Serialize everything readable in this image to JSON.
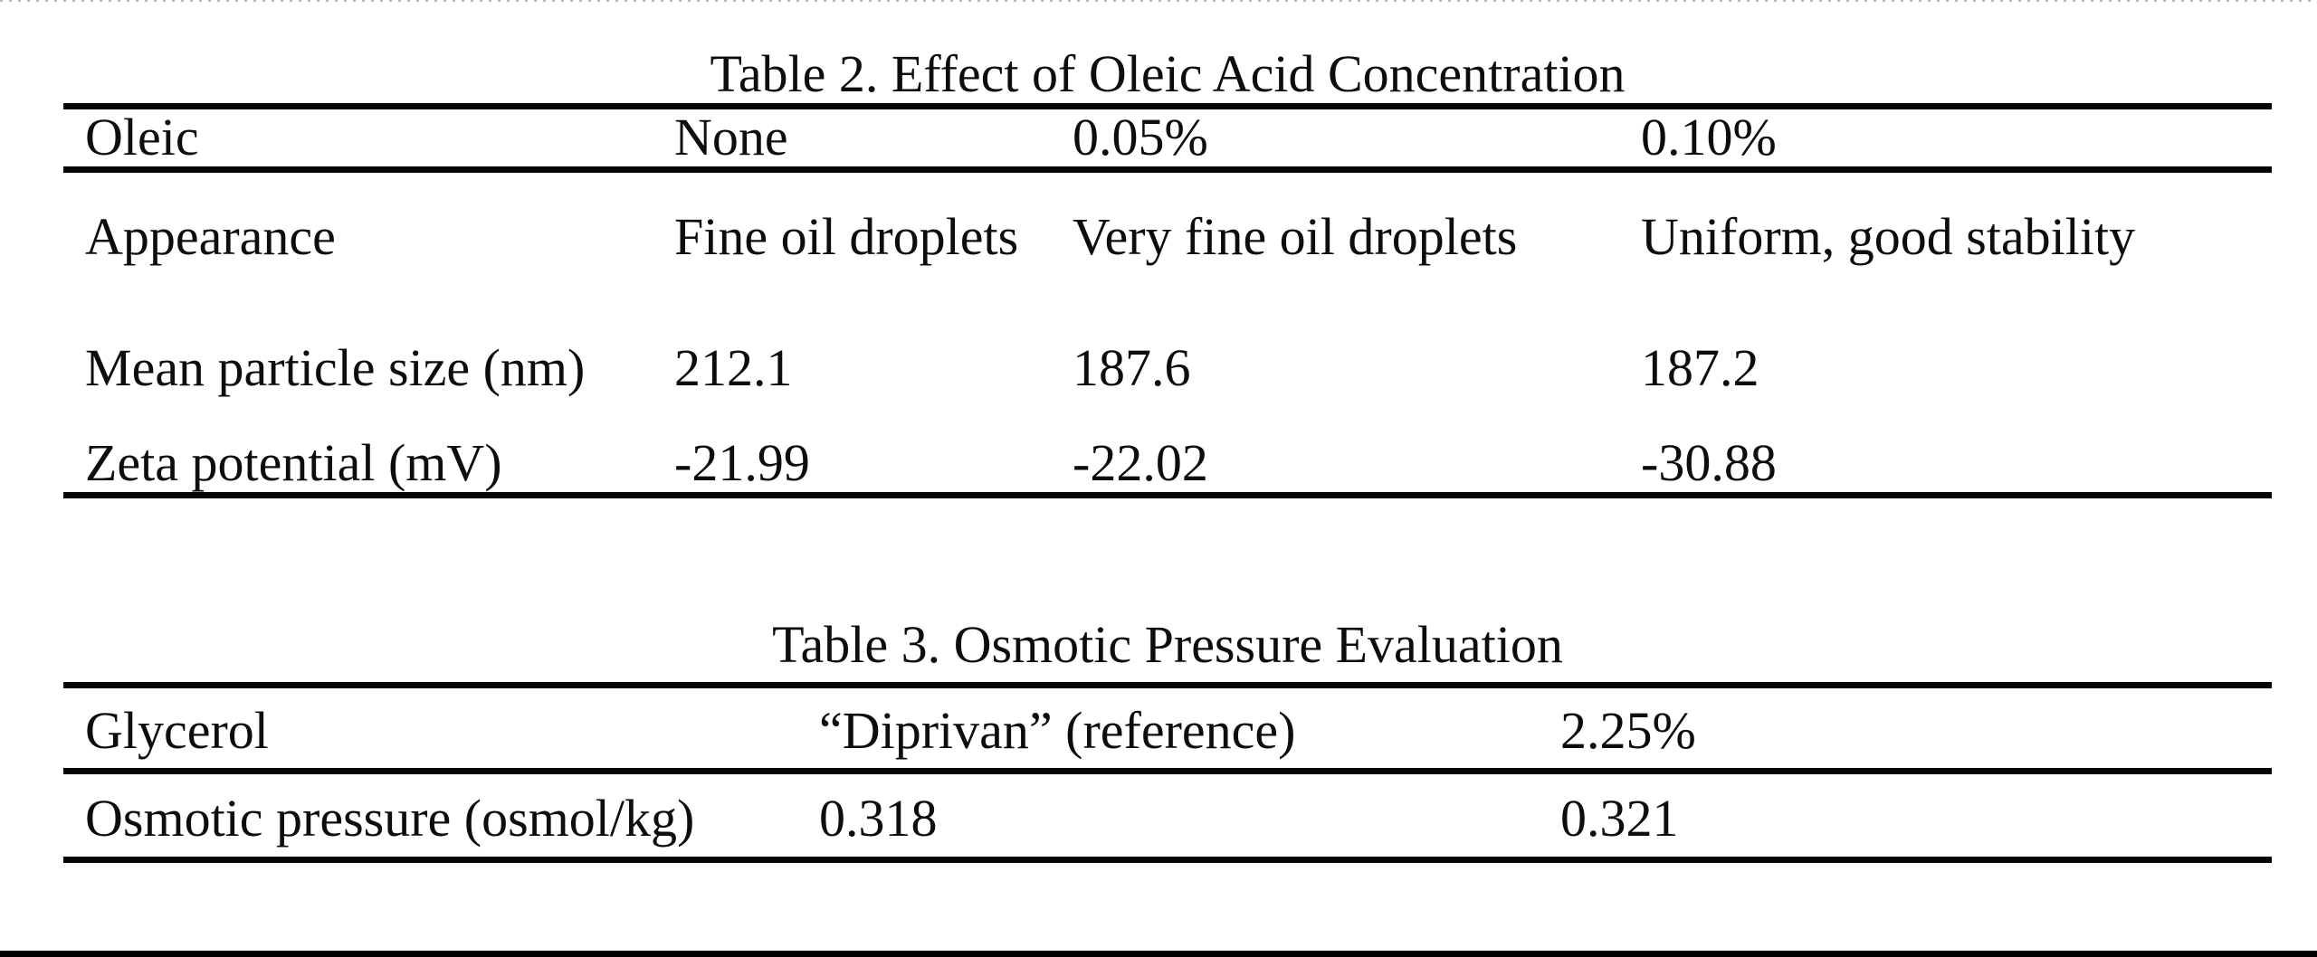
{
  "page": {
    "background_color": "#ffffff",
    "text_color": "#0d0d0d",
    "rule_color": "#050505"
  },
  "tables": [
    {
      "title": "Table 2. Effect of Oleic Acid Concentration",
      "header_row": {
        "label": "Oleic",
        "values": [
          "None",
          "0.05%",
          "0.10%"
        ]
      },
      "rows": [
        {
          "label": "Appearance",
          "values": [
            "Fine oil droplets",
            "Very fine oil droplets",
            "Uniform, good stability"
          ]
        },
        {
          "label": "Mean particle size (nm)",
          "values": [
            "212.1",
            "187.6",
            "187.2"
          ]
        },
        {
          "label": "Zeta potential (mV)",
          "values": [
            "-21.99",
            "-22.02",
            "-30.88"
          ]
        }
      ]
    },
    {
      "title": "Table 3. Osmotic Pressure Evaluation",
      "header_row": {
        "label": "Glycerol",
        "values": [
          "“Diprivan” (reference)",
          "2.25%"
        ]
      },
      "rows": [
        {
          "label": "Osmotic pressure (osmol/kg)",
          "values": [
            "0.318",
            "0.321"
          ]
        }
      ]
    }
  ]
}
